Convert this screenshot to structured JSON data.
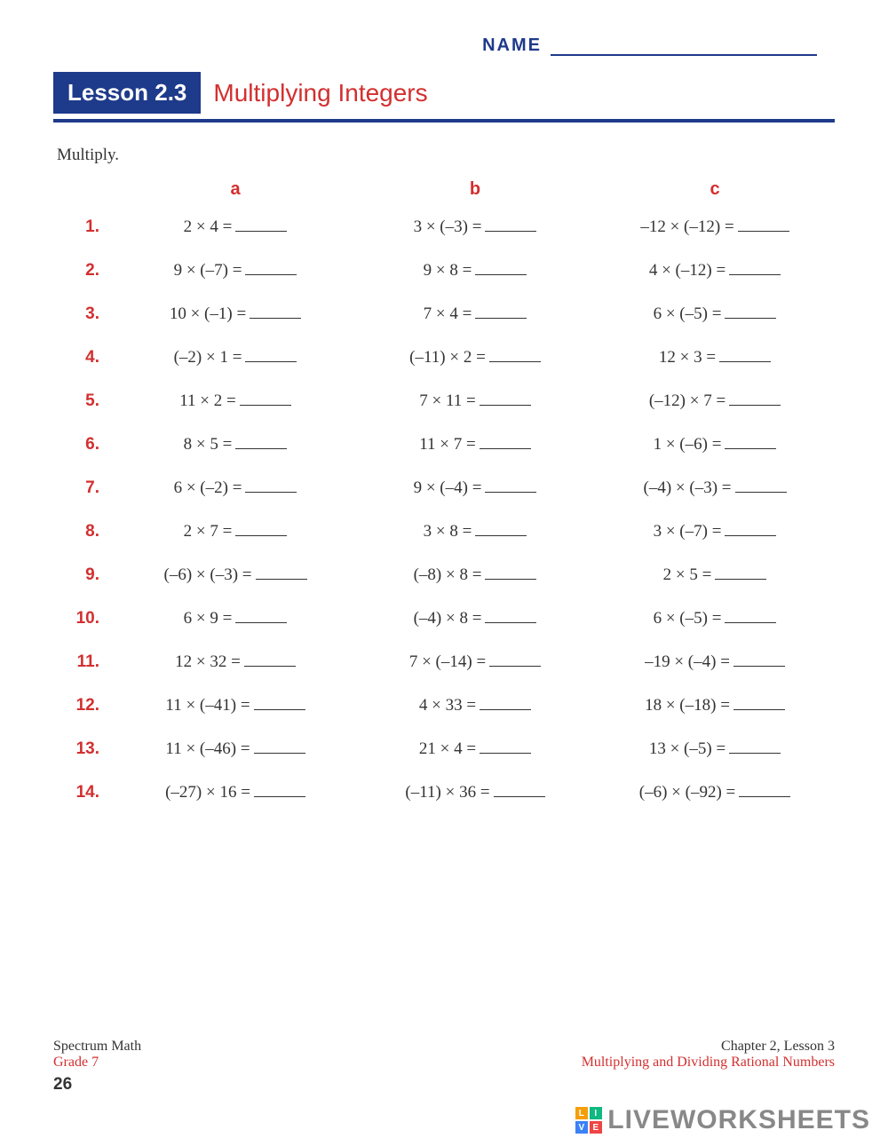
{
  "name_label": "NAME",
  "lesson_badge": "Lesson 2.3",
  "lesson_title": "Multiplying Integers",
  "instruction": "Multiply.",
  "columns": [
    "a",
    "b",
    "c"
  ],
  "rows": [
    {
      "n": "1.",
      "a": "2 × 4 =",
      "b": "3 × (–3) =",
      "c": "–12 × (–12) ="
    },
    {
      "n": "2.",
      "a": "9 × (–7) =",
      "b": "9 × 8 =",
      "c": "4 × (–12) ="
    },
    {
      "n": "3.",
      "a": "10 × (–1) =",
      "b": "7 × 4 =",
      "c": "6 × (–5) ="
    },
    {
      "n": "4.",
      "a": "(–2) × 1 =",
      "b": "(–11) × 2 =",
      "c": "12 × 3 ="
    },
    {
      "n": "5.",
      "a": "11 × 2 =",
      "b": "7 × 11 =",
      "c": "(–12) × 7 ="
    },
    {
      "n": "6.",
      "a": "8 × 5 =",
      "b": "11 × 7 =",
      "c": "1 × (–6) ="
    },
    {
      "n": "7.",
      "a": "6 × (–2) =",
      "b": "9 × (–4) =",
      "c": "(–4) × (–3) ="
    },
    {
      "n": "8.",
      "a": "2 × 7 =",
      "b": "3 × 8 =",
      "c": "3 × (–7) ="
    },
    {
      "n": "9.",
      "a": "(–6) × (–3) =",
      "b": "(–8) × 8 =",
      "c": "2 × 5 ="
    },
    {
      "n": "10.",
      "a": "6 × 9 =",
      "b": "(–4) × 8 =",
      "c": "6 × (–5) ="
    },
    {
      "n": "11.",
      "a": "12 × 32 =",
      "b": "7 × (–14) =",
      "c": "–19 × (–4) ="
    },
    {
      "n": "12.",
      "a": "11 × (–41) =",
      "b": "4 × 33 =",
      "c": "18 × (–18) ="
    },
    {
      "n": "13.",
      "a": "11 × (–46) =",
      "b": "21 × 4 =",
      "c": "13 × (–5) ="
    },
    {
      "n": "14.",
      "a": "(–27) × 16 =",
      "b": "(–11) × 36 =",
      "c": "(–6) × (–92) ="
    }
  ],
  "footer": {
    "left1": "Spectrum Math",
    "left2": "Grade 7",
    "right1": "Chapter 2, Lesson 3",
    "right2": "Multiplying and Dividing Rational Numbers",
    "page": "26"
  },
  "watermark": {
    "text": "LIVEWORKSHEETS",
    "cells": [
      "L",
      "I",
      "V",
      "E"
    ],
    "colors": [
      "#f59e0b",
      "#10b981",
      "#3b82f6",
      "#ef4444"
    ]
  }
}
